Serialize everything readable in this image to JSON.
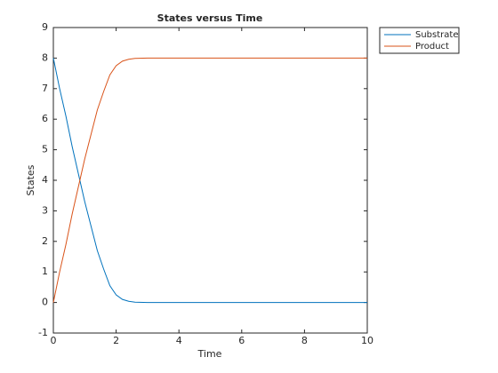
{
  "chart_data": {
    "type": "line",
    "title": "States versus Time",
    "x_label": "Time",
    "y_label": "States",
    "x": [
      0,
      0.2,
      0.4,
      0.6,
      0.8,
      1.0,
      1.2,
      1.4,
      1.6,
      1.8,
      2.0,
      2.2,
      2.4,
      2.6,
      3,
      10
    ],
    "series": [
      {
        "name": "Substrate",
        "color": "#0072bd",
        "values": [
          8,
          7.0,
          6.1,
          5.1,
          4.2,
          3.3,
          2.5,
          1.7,
          1.1,
          0.55,
          0.25,
          0.1,
          0.04,
          0.01,
          0,
          0
        ]
      },
      {
        "name": "Product",
        "color": "#d95319",
        "values": [
          0,
          1.0,
          1.9,
          2.9,
          3.8,
          4.7,
          5.5,
          6.3,
          6.9,
          7.45,
          7.75,
          7.9,
          7.96,
          7.99,
          8,
          8
        ]
      }
    ],
    "xlim": [
      0,
      10
    ],
    "xticks": [
      0,
      2,
      4,
      6,
      8,
      10
    ],
    "ylim": [
      -1,
      9
    ],
    "yticks": [
      -1,
      0,
      1,
      2,
      3,
      4,
      5,
      6,
      7,
      8,
      9
    ],
    "grid": false,
    "legend": "outside-top-right"
  }
}
